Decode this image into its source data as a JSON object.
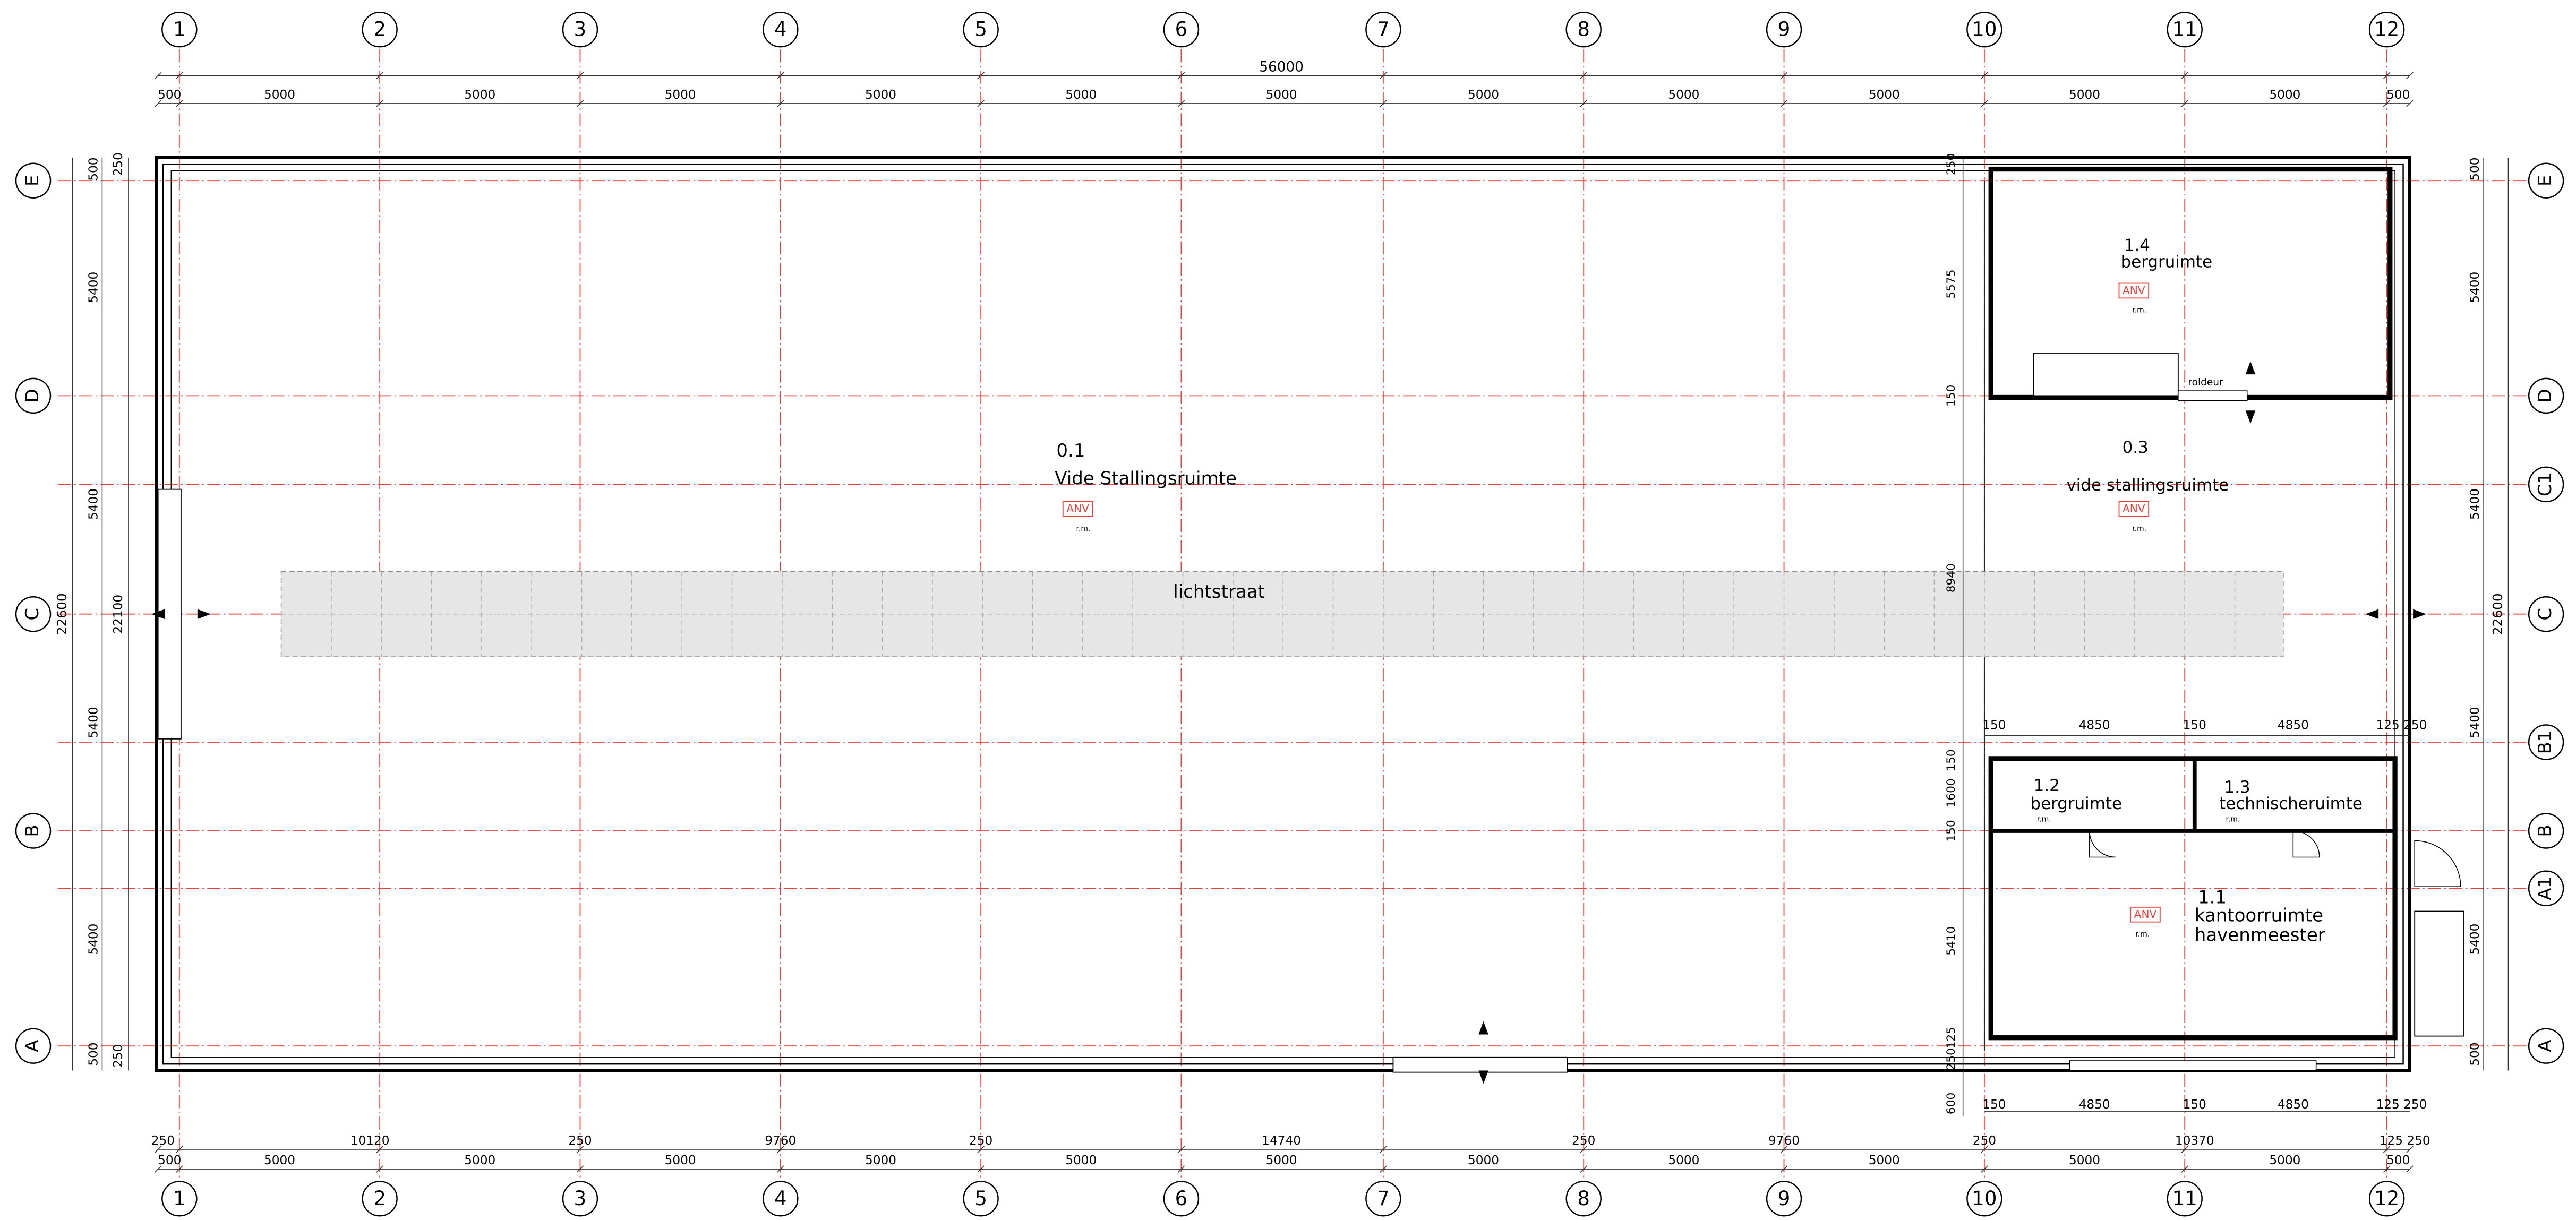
{
  "grid_columns": [
    "1",
    "2",
    "3",
    "4",
    "5",
    "6",
    "7",
    "8",
    "9",
    "10",
    "11",
    "12"
  ],
  "grid_rows_left": [
    "E",
    "D",
    "C",
    "B",
    "A"
  ],
  "grid_rows_right": [
    "E",
    "D",
    "C1",
    "C",
    "B1",
    "B",
    "A1",
    "A"
  ],
  "top_dimensions": {
    "total": "56000",
    "segments": [
      "500",
      "5000",
      "5000",
      "5000",
      "5000",
      "5000",
      "5000",
      "5000",
      "5000",
      "5000",
      "5000",
      "5000",
      "500"
    ]
  },
  "bottom_dimensions": {
    "row1": [
      "250",
      "10120",
      "250",
      "9760",
      "250",
      "14740",
      "250",
      "9760",
      "250",
      "10370",
      "125 250"
    ],
    "row2": [
      "500",
      "5000",
      "5000",
      "5000",
      "5000",
      "5000",
      "5000",
      "5000",
      "5000",
      "5000",
      "5000",
      "5000",
      "500"
    ]
  },
  "left_dimensions": {
    "segments": [
      "500",
      "5400",
      "5400",
      "5400",
      "5400",
      "500"
    ],
    "total": "22600",
    "inner": [
      "250",
      "22100",
      "250"
    ]
  },
  "right_dimensions": {
    "segments": [
      "500",
      "5400",
      "5400",
      "5400",
      "5400",
      "500"
    ],
    "total": "22600"
  },
  "interior_vertical_dimensions": [
    "250",
    "5575",
    "150",
    "8940",
    "150",
    "1600",
    "150",
    "5410",
    "125",
    "250",
    "600"
  ],
  "interior_horizontal_dimensions": {
    "upper": [
      "150",
      "4850",
      "150",
      "4850",
      "125 250"
    ],
    "lower": [
      "150",
      "4850",
      "150",
      "4850",
      "125 250"
    ]
  },
  "rooms": [
    {
      "number": "0.1",
      "name": [
        "Vide Stallingsruimte"
      ],
      "tag": "ANV",
      "note": "r.m."
    },
    {
      "number": "1.4",
      "name": [
        "bergruimte"
      ],
      "tag": "ANV",
      "note": "r.m."
    },
    {
      "number": "0.3",
      "name": [
        "vide stallingsruimte"
      ],
      "tag": "ANV",
      "note": "r.m."
    },
    {
      "number": "1.2",
      "name": [
        "bergruimte"
      ],
      "note": "r.m."
    },
    {
      "number": "1.3",
      "name": [
        "technischeruimte"
      ],
      "note": "r.m."
    },
    {
      "number": "1.1",
      "name": [
        "kantoorruimte",
        "havenmeester"
      ],
      "tag": "ANV",
      "note": "r.m."
    }
  ],
  "labels": {
    "skylight": "lichtstraat",
    "roller_door": "roldeur"
  }
}
